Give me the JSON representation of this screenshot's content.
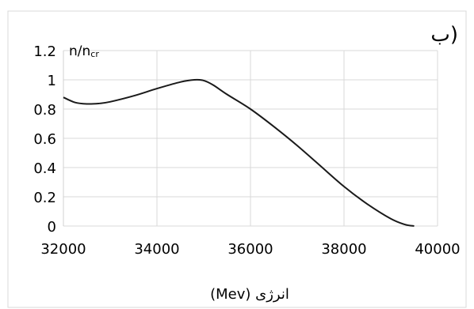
{
  "chart_data": {
    "type": "line",
    "panel_label": "ب)",
    "ylabel_main": "n/n",
    "ylabel_sub": "cr",
    "xlabel": "انرژی (Mev)",
    "xlim": [
      32000,
      40000
    ],
    "ylim": [
      0,
      1.2
    ],
    "xticks": [
      32000,
      34000,
      36000,
      38000,
      40000
    ],
    "xtick_labels": [
      "32000",
      "34000",
      "36000",
      "38000",
      "40000"
    ],
    "yticks": [
      0,
      0.2,
      0.4,
      0.6,
      0.8,
      1,
      1.2
    ],
    "ytick_labels": [
      "0",
      "0.2",
      "0.4",
      "0.6",
      "0.8",
      "1",
      "1.2"
    ],
    "grid": true,
    "legend": "none",
    "series": [
      {
        "color": "#1a1a1a",
        "x": [
          32000,
          32250,
          32500,
          32750,
          33000,
          33500,
          34000,
          34500,
          34800,
          35000,
          35200,
          35500,
          36000,
          36500,
          37000,
          37500,
          38000,
          38500,
          39000,
          39300,
          39500
        ],
        "y": [
          0.88,
          0.845,
          0.835,
          0.838,
          0.85,
          0.89,
          0.94,
          0.985,
          1.0,
          0.995,
          0.965,
          0.9,
          0.8,
          0.68,
          0.55,
          0.41,
          0.27,
          0.15,
          0.05,
          0.01,
          0.0
        ]
      }
    ]
  }
}
